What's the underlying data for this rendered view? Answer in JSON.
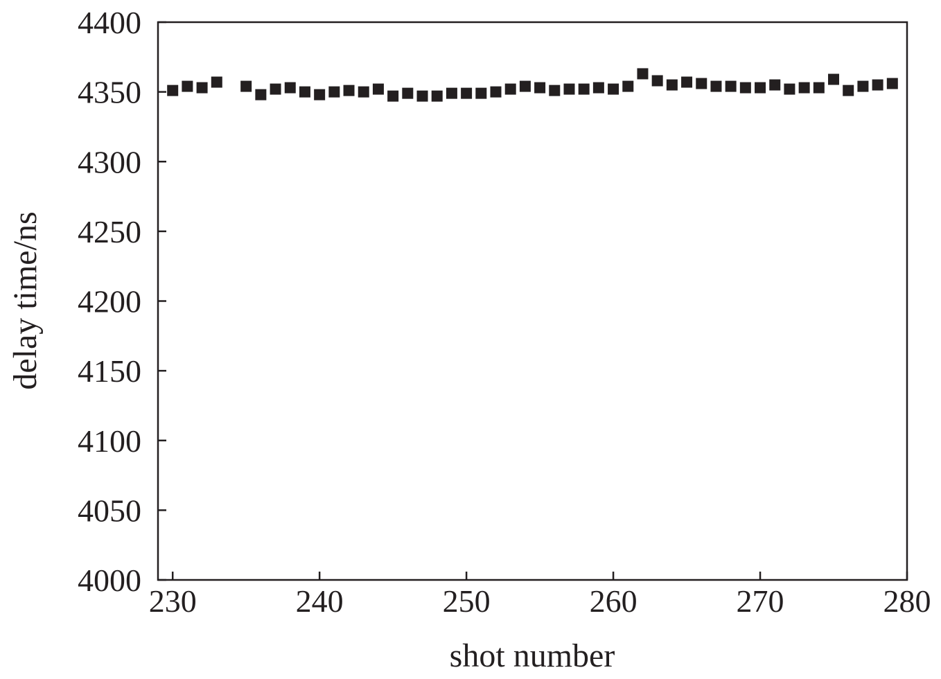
{
  "chart_data": {
    "type": "scatter",
    "xlabel": "shot number",
    "ylabel": "delay time/ns",
    "xlim": [
      229,
      280
    ],
    "ylim": [
      4000,
      4400
    ],
    "xticks": [
      230,
      240,
      250,
      260,
      270,
      280
    ],
    "yticks": [
      4000,
      4050,
      4100,
      4150,
      4200,
      4250,
      4300,
      4350,
      4400
    ],
    "grid": false,
    "marker": "square",
    "marker_color": "#231f20",
    "series": [
      {
        "x": [
          230,
          231,
          232,
          233,
          235,
          236,
          237,
          238,
          239,
          240,
          241,
          242,
          243,
          244,
          245,
          246,
          247,
          248,
          249,
          250,
          251,
          252,
          253,
          254,
          255,
          256,
          257,
          258,
          259,
          260,
          261,
          262,
          263,
          264,
          265,
          266,
          267,
          268,
          269,
          270,
          271,
          272,
          273,
          274,
          275,
          276,
          277,
          278,
          279
        ],
        "y": [
          4351,
          4354,
          4353,
          4357,
          4354,
          4348,
          4352,
          4353,
          4350,
          4348,
          4350,
          4351,
          4350,
          4352,
          4347,
          4349,
          4347,
          4347,
          4349,
          4349,
          4349,
          4350,
          4352,
          4354,
          4353,
          4351,
          4352,
          4352,
          4353,
          4352,
          4354,
          4363,
          4358,
          4355,
          4357,
          4356,
          4354,
          4354,
          4353,
          4353,
          4355,
          4352,
          4353,
          4353,
          4359,
          4351,
          4354,
          4355,
          4356
        ]
      }
    ]
  }
}
